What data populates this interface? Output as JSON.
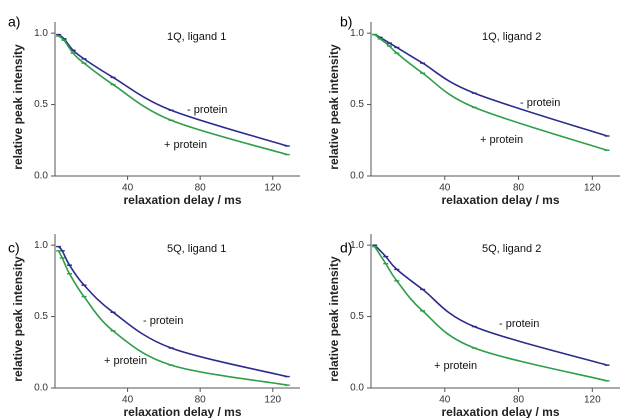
{
  "chart_data": [
    {
      "type": "line",
      "panel_label": "a)",
      "title": "1Q, ligand 1",
      "xlabel": "relaxation delay / ms",
      "ylabel": "relative peak intensity",
      "xlim": [
        0,
        135
      ],
      "ylim": [
        0,
        1.05
      ],
      "xticks": [
        40,
        80,
        120
      ],
      "yticks": [
        0.0,
        0.5,
        1.0
      ],
      "tick_labels_x": [
        "40",
        "80",
        "120"
      ],
      "tick_labels_y": [
        "0.0",
        "0.5",
        "1.0"
      ],
      "series": [
        {
          "name": "- protein",
          "color": "#2b2b8c",
          "x": [
            2,
            5,
            10,
            16,
            32,
            64,
            128
          ],
          "y": [
            0.99,
            0.96,
            0.88,
            0.82,
            0.69,
            0.46,
            0.21
          ]
        },
        {
          "name": "+ protein",
          "color": "#2e9e4a",
          "x": [
            2,
            5,
            10,
            16,
            32,
            64,
            128
          ],
          "y": [
            0.98,
            0.95,
            0.86,
            0.79,
            0.64,
            0.39,
            0.15
          ]
        }
      ]
    },
    {
      "type": "line",
      "panel_label": "b)",
      "title": "1Q, ligand 2",
      "xlabel": "relaxation delay / ms",
      "ylabel": "relative peak intensity",
      "xlim": [
        0,
        135
      ],
      "ylim": [
        0,
        1.05
      ],
      "xticks": [
        40,
        80,
        120
      ],
      "yticks": [
        0.0,
        0.5,
        1.0
      ],
      "tick_labels_x": [
        "40",
        "80",
        "120"
      ],
      "tick_labels_y": [
        "0.0",
        "0.5",
        "1.0"
      ],
      "series": [
        {
          "name": "- protein",
          "color": "#2b2b8c",
          "x": [
            2,
            5,
            10,
            14,
            28,
            56,
            128
          ],
          "y": [
            0.99,
            0.97,
            0.93,
            0.9,
            0.79,
            0.58,
            0.28
          ]
        },
        {
          "name": "+ protein",
          "color": "#2e9e4a",
          "x": [
            2,
            5,
            10,
            14,
            28,
            56,
            128
          ],
          "y": [
            0.99,
            0.96,
            0.91,
            0.86,
            0.72,
            0.48,
            0.18
          ]
        }
      ]
    },
    {
      "type": "line",
      "panel_label": "c)",
      "title": "5Q, ligand 1",
      "xlabel": "relaxation delay / ms",
      "ylabel": "relative peak intensity",
      "xlim": [
        0,
        135
      ],
      "ylim": [
        0,
        1.05
      ],
      "xticks": [
        40,
        80,
        120
      ],
      "yticks": [
        0.0,
        0.5,
        1.0
      ],
      "tick_labels_x": [
        "40",
        "80",
        "120"
      ],
      "tick_labels_y": [
        "0.0",
        "0.5",
        "1.0"
      ],
      "series": [
        {
          "name": "- protein",
          "color": "#2b2b8c",
          "x": [
            2,
            4,
            8,
            16,
            32,
            64,
            128
          ],
          "y": [
            0.99,
            0.96,
            0.86,
            0.72,
            0.53,
            0.28,
            0.08
          ]
        },
        {
          "name": "+ protein",
          "color": "#2e9e4a",
          "x": [
            2,
            4,
            8,
            16,
            32,
            64,
            128
          ],
          "y": [
            0.96,
            0.91,
            0.8,
            0.64,
            0.4,
            0.16,
            0.02
          ]
        }
      ]
    },
    {
      "type": "line",
      "panel_label": "d)",
      "title": "5Q, ligand 2",
      "xlabel": "relaxation delay / ms",
      "ylabel": "relative peak intensity",
      "xlim": [
        0,
        135
      ],
      "ylim": [
        0,
        1.05
      ],
      "xticks": [
        40,
        80,
        120
      ],
      "yticks": [
        0.0,
        0.5,
        1.0
      ],
      "tick_labels_x": [
        "40",
        "80",
        "120"
      ],
      "tick_labels_y": [
        "0.0",
        "0.5",
        "1.0"
      ],
      "series": [
        {
          "name": "- protein",
          "color": "#2b2b8c",
          "x": [
            2,
            8,
            14,
            28,
            56,
            128
          ],
          "y": [
            1.0,
            0.92,
            0.83,
            0.69,
            0.43,
            0.16
          ]
        },
        {
          "name": "+ protein",
          "color": "#2e9e4a",
          "x": [
            2,
            8,
            14,
            28,
            56,
            128
          ],
          "y": [
            0.99,
            0.87,
            0.75,
            0.54,
            0.28,
            0.05
          ]
        }
      ]
    }
  ]
}
